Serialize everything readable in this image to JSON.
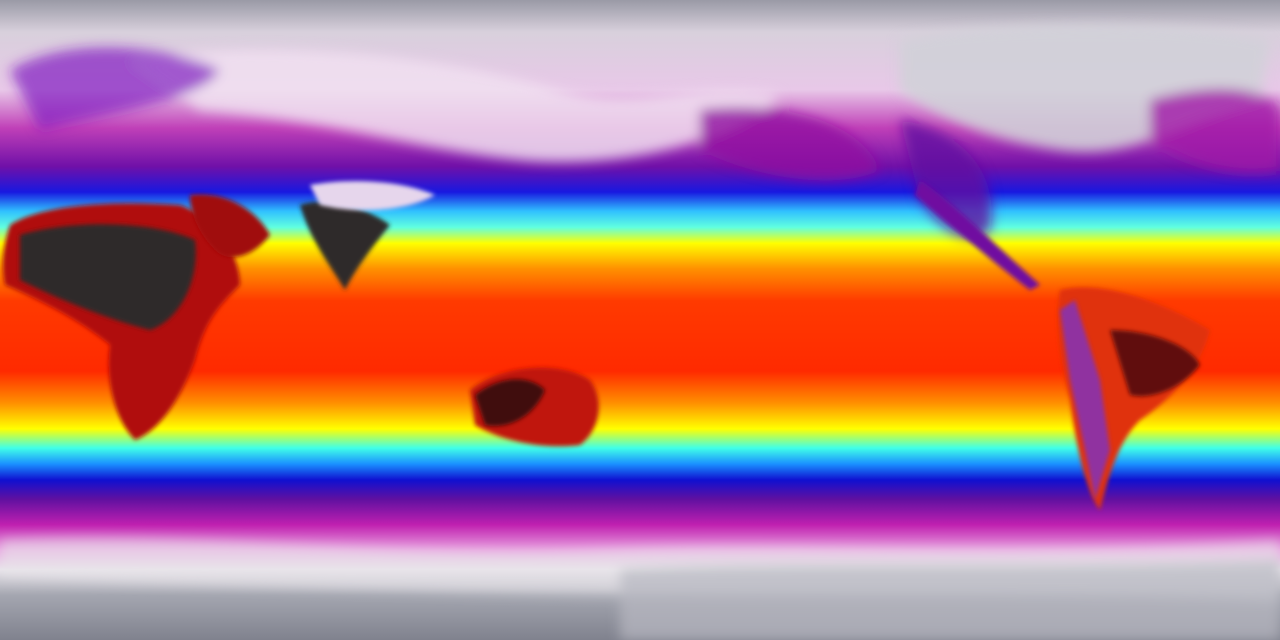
{
  "map": {
    "projection": "equirectangular",
    "variable": "temperature",
    "colormap": [
      "#8a8c96",
      "#e8e4ea",
      "#f2c6ee",
      "#c020b0",
      "#5010a0",
      "#1010e0",
      "#20a0ff",
      "#40ffff",
      "#ffff00",
      "#ffa000",
      "#ff3000",
      "#e01010",
      "#501010",
      "#303030"
    ],
    "colors": {
      "polar": "#8a8c96",
      "cold": "#c020b0",
      "cool": "#1010e0",
      "mild": "#40ffff",
      "warm": "#ffff00",
      "hot": "#ff3000",
      "hottest_land": "#2e2a2a"
    }
  }
}
